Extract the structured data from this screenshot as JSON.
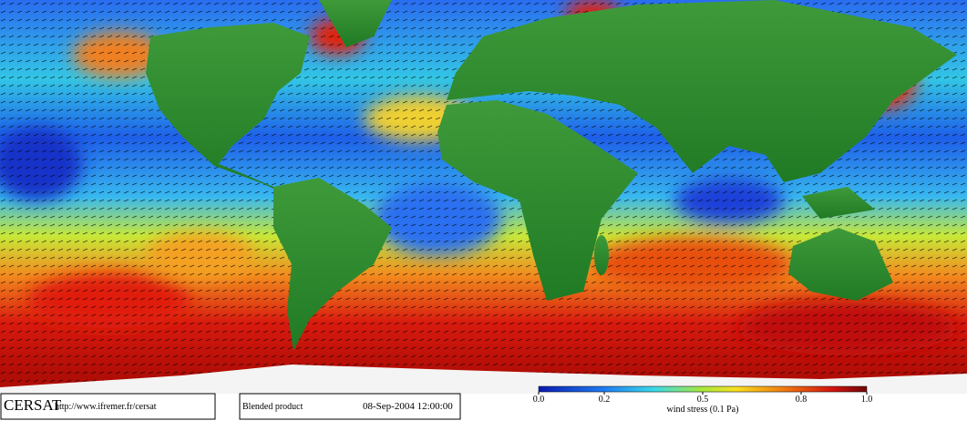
{
  "header": {
    "logo": "CERSAT",
    "url": "http://www.ifremer.fr/cersat"
  },
  "product": {
    "name": "Blended product",
    "datetime": "08-Sep-2004 12:00:00"
  },
  "colorbar": {
    "label": "wind stress (0.1 Pa)",
    "lim": [
      0,
      1
    ],
    "ticks": [
      {
        "value": 0,
        "label": "0.0"
      },
      0.2,
      0.5,
      0.8,
      {
        "value": 1,
        "label": "1.0"
      }
    ]
  }
}
